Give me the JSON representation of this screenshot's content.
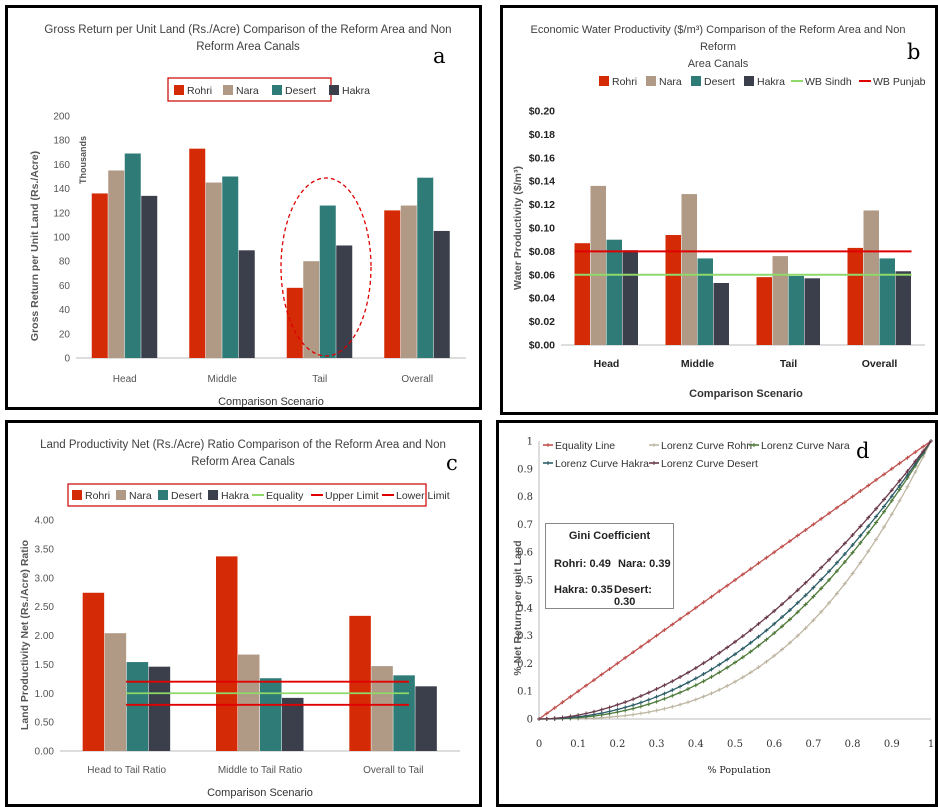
{
  "colors": {
    "Rohri": "#d42a06",
    "Nara": "#b09a85",
    "Desert": "#2e7b77",
    "Hakra": "#3a3f4b",
    "green": "#8fd86a",
    "red": "#e00000",
    "equality": "#c0504d",
    "lorenz_rohri": "#bfb7a3",
    "lorenz_nara": "#4f7a3a",
    "lorenz_hakra": "#2c5e68",
    "lorenz_desert": "#6a3a4a"
  },
  "panels": {
    "a": {
      "label": "a",
      "title_line1": "Gross Return per Unit Land (Rs./Acre) Comparison of the Reform Area and Non",
      "title_line2": "Reform Area Canals",
      "ylabel": "Gross Return per Unit Land (Rs./Acre)",
      "units": "Thousands",
      "xlabel": "Comparison Scenario",
      "legend": [
        "Rohri",
        "Nara",
        "Desert",
        "Hakra"
      ]
    },
    "b": {
      "label": "b",
      "title_line1": "Economic Water Productivity ($/m³) Comparison of the Reform Area and Non Reform",
      "title_line2": "Area Canals",
      "ylabel": "Water Productivity ($/m³)",
      "xlabel": "Comparison Scenario",
      "legend": [
        "Rohri",
        "Nara",
        "Desert",
        "Hakra",
        "WB Sindh",
        "WB Punjab"
      ]
    },
    "c": {
      "label": "c",
      "title_line1": "Land Productivity Net (Rs./Acre) Ratio Comparison of the Reform Area and Non",
      "title_line2": "Reform Area Canals",
      "ylabel": "Land Productivity Net (Rs./Acre) Ratio",
      "xlabel": "Comparison Scenario",
      "legend": [
        "Rohri",
        "Nara",
        "Desert",
        "Hakra",
        "Equality",
        "Upper Limit",
        "Lower Limit"
      ]
    },
    "d": {
      "label": "d",
      "ylabel": "% Net Return per unit Land",
      "xlabel": "% Population",
      "legend": [
        "Equality Line",
        "Lorenz Curve Rohri",
        "Lorenz Curve Nara",
        "Lorenz Curve Hakra",
        "Lorenz Curve Desert"
      ],
      "gini_title": "Gini Coefficient",
      "gini_rohri": "Rohri: 0.49",
      "gini_nara": "Nara: 0.39",
      "gini_hakra": "Hakra: 0.35",
      "gini_desert": "Desert: 0.30"
    }
  },
  "chart_data": [
    {
      "type": "bar",
      "categories": [
        "Head",
        "Middle",
        "Tail",
        "Overall"
      ],
      "series": [
        {
          "name": "Rohri",
          "values": [
            136,
            173,
            58,
            122
          ]
        },
        {
          "name": "Nara",
          "values": [
            155,
            145,
            80,
            126
          ]
        },
        {
          "name": "Desert",
          "values": [
            169,
            150,
            126,
            149
          ]
        },
        {
          "name": "Hakra",
          "values": [
            134,
            89,
            93,
            105
          ]
        }
      ],
      "ylim": [
        0,
        200
      ],
      "yticks": [
        "0",
        "20",
        "40",
        "60",
        "80",
        "100",
        "120",
        "140",
        "160",
        "180",
        "200"
      ]
    },
    {
      "type": "bar",
      "categories": [
        "Head",
        "Middle",
        "Tail",
        "Overall"
      ],
      "series": [
        {
          "name": "Rohri",
          "values": [
            0.087,
            0.094,
            0.058,
            0.083
          ]
        },
        {
          "name": "Nara",
          "values": [
            0.136,
            0.129,
            0.076,
            0.115
          ]
        },
        {
          "name": "Desert",
          "values": [
            0.09,
            0.074,
            0.059,
            0.074
          ]
        },
        {
          "name": "Hakra",
          "values": [
            0.081,
            0.053,
            0.057,
            0.063
          ]
        }
      ],
      "reference_lines": [
        {
          "name": "WB Sindh",
          "value": 0.06
        },
        {
          "name": "WB Punjab",
          "value": 0.08
        }
      ],
      "ylim": [
        0,
        0.2
      ],
      "yticks": [
        "$0.00",
        "$0.02",
        "$0.04",
        "$0.06",
        "$0.08",
        "$0.10",
        "$0.12",
        "$0.14",
        "$0.16",
        "$0.18",
        "$0.20"
      ]
    },
    {
      "type": "bar",
      "categories": [
        "Head to Tail Ratio",
        "Middle to Tail Ratio",
        "Overall to Tail"
      ],
      "series": [
        {
          "name": "Rohri",
          "values": [
            2.74,
            3.37,
            2.34
          ]
        },
        {
          "name": "Nara",
          "values": [
            2.04,
            1.67,
            1.47
          ]
        },
        {
          "name": "Desert",
          "values": [
            1.54,
            1.26,
            1.31
          ]
        },
        {
          "name": "Hakra",
          "values": [
            1.46,
            0.92,
            1.12
          ]
        }
      ],
      "reference_lines": [
        {
          "name": "Equality",
          "value": 1.0
        },
        {
          "name": "Upper Limit",
          "value": 1.2
        },
        {
          "name": "Lower Limit",
          "value": 0.8
        }
      ],
      "ylim": [
        0,
        4
      ],
      "yticks": [
        "0.00",
        "0.50",
        "1.00",
        "1.50",
        "2.00",
        "2.50",
        "3.00",
        "3.50",
        "4.00"
      ]
    },
    {
      "type": "line",
      "x_range": [
        0,
        1
      ],
      "y_range": [
        0,
        1
      ],
      "xticks": [
        "0",
        "0.1",
        "0.2",
        "0.3",
        "0.4",
        "0.5",
        "0.6",
        "0.7",
        "0.8",
        "0.9",
        "1"
      ],
      "yticks": [
        "0",
        "0.1",
        "0.2",
        "0.3",
        "0.4",
        "0.5",
        "0.6",
        "0.7",
        "0.8",
        "0.9",
        "1"
      ],
      "series": [
        {
          "name": "Equality Line",
          "exponent": 1.0
        },
        {
          "name": "Lorenz Curve Rohri",
          "exponent": 2.9
        },
        {
          "name": "Lorenz Curve Nara",
          "exponent": 2.3
        },
        {
          "name": "Lorenz Curve Hakra",
          "exponent": 2.1
        },
        {
          "name": "Lorenz Curve Desert",
          "exponent": 1.85
        }
      ]
    }
  ]
}
